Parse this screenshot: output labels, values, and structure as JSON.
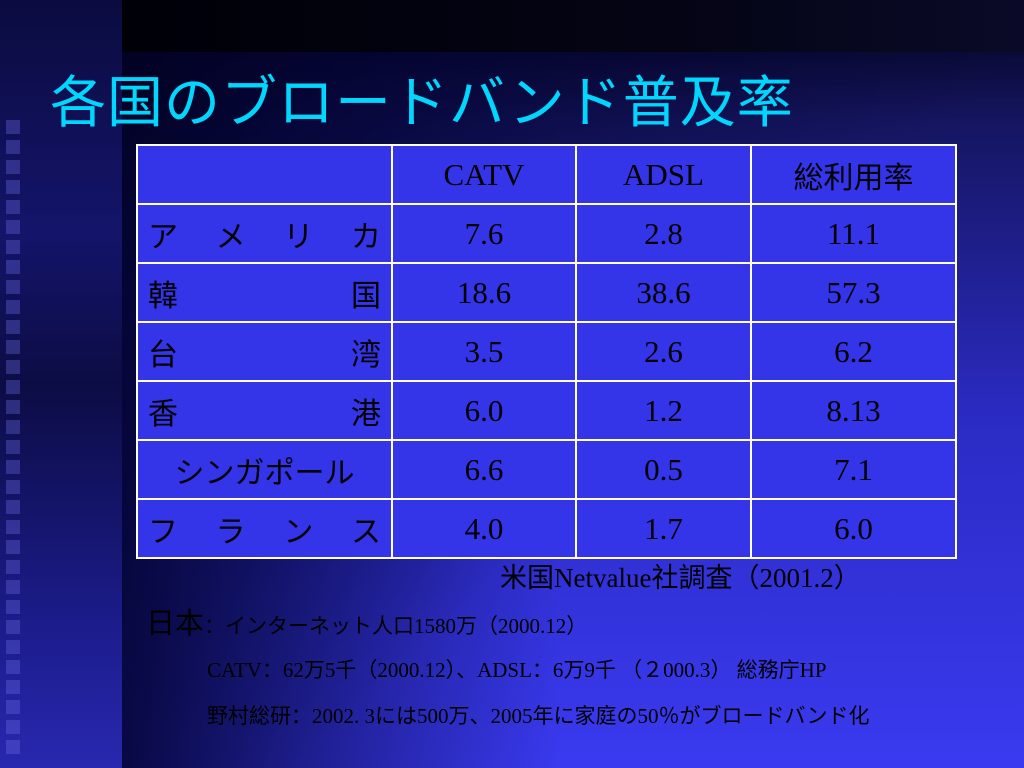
{
  "slide": {
    "title": "各国のブロードバンド普及率",
    "colors": {
      "title": "#00d7ff",
      "background": "#3434e8",
      "text": "#000000",
      "border": "#ffffff"
    }
  },
  "table": {
    "headers": [
      "",
      "CATV",
      "ADSL",
      "総利用率"
    ],
    "rows": [
      {
        "country": "ア メ リ カ",
        "catv": "7.6",
        "adsl": "2.8",
        "total": "11.1"
      },
      {
        "country": "韓 国",
        "catv": "18.6",
        "adsl": "38.6",
        "total": "57.3"
      },
      {
        "country": "台 湾",
        "catv": "3.5",
        "adsl": "2.6",
        "total": "6.2"
      },
      {
        "country": "香 港",
        "catv": "6.0",
        "adsl": "1.2",
        "total": "8.13"
      },
      {
        "country": "シンガポール",
        "catv": "6.6",
        "adsl": "0.5",
        "total": "7.1"
      },
      {
        "country": "フ ラ ン ス",
        "catv": "4.0",
        "adsl": "1.7",
        "total": "6.0"
      }
    ]
  },
  "source_note": "米国Netvalue社調査（2001.2）",
  "notes": {
    "japan_label": "日本",
    "japan_text": "：インターネット人口1580万（2000.12）",
    "catv_adsl": "CATV：62万5千（2000.12）、ADSL：6万9千 （２000.3） 総務庁HP",
    "nomura": "野村総研：2002. 3には500万、2005年に家庭の50％がブロードバンド化"
  }
}
